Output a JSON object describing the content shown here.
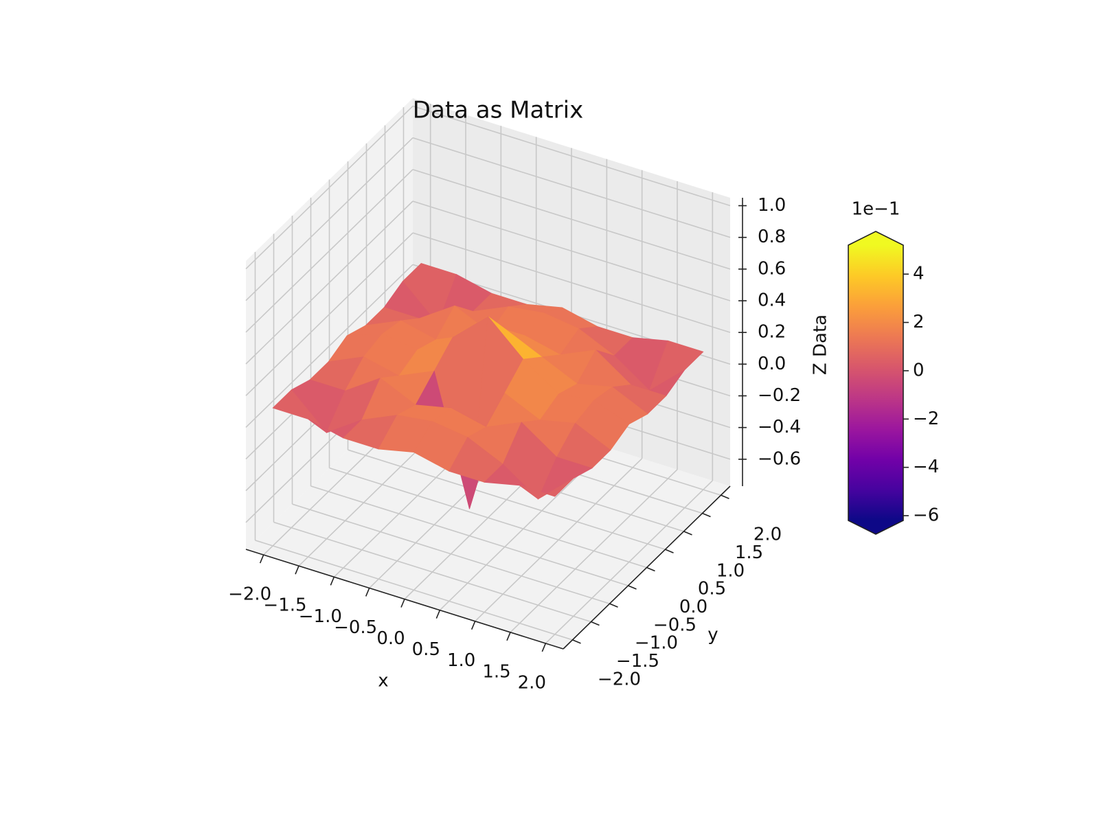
{
  "chart_data": {
    "type": "surface",
    "title": "Data as Matrix",
    "xlabel": "x",
    "ylabel": "y",
    "zlabel": "Z Data",
    "x": [
      -2,
      -1.5,
      -1,
      -0.5,
      0,
      0.5,
      1,
      1.5,
      2
    ],
    "y": [
      -2,
      -1.5,
      -1,
      -0.5,
      0,
      0.5,
      1,
      1.5,
      2
    ],
    "z": [
      [
        0.1,
        0.1,
        0.05,
        0.05,
        0.1,
        0.05,
        0.05,
        0.1,
        0.1
      ],
      [
        0.1,
        -0.1,
        0.05,
        0.15,
        0.18,
        0.15,
        0.05,
        -0.1,
        0.1
      ],
      [
        0.05,
        0.05,
        0.2,
        0.1,
        0.15,
        0.1,
        0.2,
        0.05,
        0.05
      ],
      [
        0.05,
        0.15,
        0.1,
        0.2,
        -0.6,
        0.2,
        0.1,
        0.15,
        0.05
      ],
      [
        0.1,
        0.18,
        0.15,
        0.3,
        0.5,
        0.3,
        0.15,
        0.18,
        0.1
      ],
      [
        0.05,
        0.15,
        0.1,
        0.2,
        0.3,
        0.2,
        0.1,
        0.15,
        0.05
      ],
      [
        0.05,
        0.05,
        0.2,
        0.1,
        0.15,
        0.1,
        0.2,
        0.05,
        0.05
      ],
      [
        0.1,
        -0.1,
        0.05,
        0.15,
        0.18,
        0.15,
        0.05,
        -0.1,
        0.1
      ],
      [
        0.1,
        0.1,
        0.05,
        0.05,
        0.1,
        0.05,
        0.05,
        0.1,
        0.1
      ]
    ],
    "xlim": [
      -2.25,
      2.25
    ],
    "ylim": [
      -2.25,
      2.25
    ],
    "zlim": [
      -0.77,
      1.05
    ],
    "xticks": [
      {
        "value": -2,
        "label": "−2.0"
      },
      {
        "value": -1.5,
        "label": "−1.5"
      },
      {
        "value": -1,
        "label": "−1.0"
      },
      {
        "value": -0.5,
        "label": "−0.5"
      },
      {
        "value": 0,
        "label": "0.0"
      },
      {
        "value": 0.5,
        "label": "0.5"
      },
      {
        "value": 1,
        "label": "1.0"
      },
      {
        "value": 1.5,
        "label": "1.5"
      },
      {
        "value": 2,
        "label": "2.0"
      }
    ],
    "yticks": [
      {
        "value": -2,
        "label": "−2.0"
      },
      {
        "value": -1.5,
        "label": "−1.5"
      },
      {
        "value": -1,
        "label": "−1.0"
      },
      {
        "value": -0.5,
        "label": "−0.5"
      },
      {
        "value": 0,
        "label": "0.0"
      },
      {
        "value": 0.5,
        "label": "0.5"
      },
      {
        "value": 1,
        "label": "1.0"
      },
      {
        "value": 1.5,
        "label": "1.5"
      },
      {
        "value": 2,
        "label": "2.0"
      }
    ],
    "zticks": [
      {
        "value": -0.6,
        "label": "−0.6"
      },
      {
        "value": -0.4,
        "label": "−0.4"
      },
      {
        "value": -0.2,
        "label": "−0.2"
      },
      {
        "value": 0,
        "label": "0.0"
      },
      {
        "value": 0.2,
        "label": "0.2"
      },
      {
        "value": 0.4,
        "label": "0.4"
      },
      {
        "value": 0.6,
        "label": "0.6"
      },
      {
        "value": 0.8,
        "label": "0.8"
      },
      {
        "value": 1,
        "label": "1.0"
      }
    ],
    "grid": true,
    "colormap": "plasma",
    "colorbar": {
      "offset_label": "1e−1",
      "lim": [
        -0.62,
        0.52
      ],
      "extend": "both",
      "ticks": [
        {
          "value": -0.6,
          "label": "−6"
        },
        {
          "value": -0.4,
          "label": "−4"
        },
        {
          "value": -0.2,
          "label": "−2"
        },
        0,
        {
          "value": 0.2,
          "label": "2"
        },
        {
          "value": 0.4,
          "label": "4"
        }
      ]
    }
  }
}
